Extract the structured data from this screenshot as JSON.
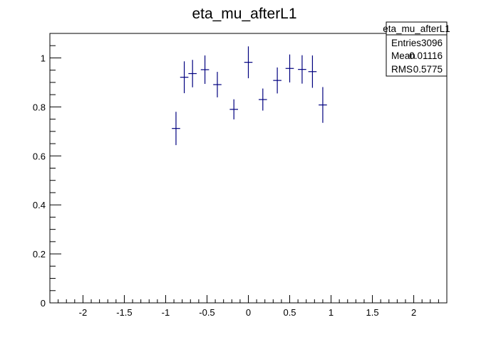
{
  "chart_data": {
    "type": "scatter",
    "title": "eta_mu_afterL1",
    "xlabel": "",
    "ylabel": "",
    "xlim": [
      -2.4,
      2.4
    ],
    "ylim": [
      0,
      1.1
    ],
    "grid": false,
    "x_ticks": [
      -2,
      -1.5,
      -1,
      -0.5,
      0,
      0.5,
      1,
      1.5,
      2
    ],
    "x_tick_labels": [
      "-2",
      "-1.5",
      "-1",
      "-0.5",
      "0",
      "0.5",
      "1",
      "1.5",
      "2"
    ],
    "y_ticks": [
      0,
      0.2,
      0.4,
      0.6,
      0.8,
      1
    ],
    "y_tick_labels": [
      "0",
      "0.2",
      "0.4",
      "0.6",
      "0.8",
      "1"
    ],
    "bin_half_width": 0.05,
    "points": [
      {
        "x": -0.875,
        "y": 0.712,
        "yerr": 0.068
      },
      {
        "x": -0.775,
        "y": 0.921,
        "yerr": 0.065
      },
      {
        "x": -0.675,
        "y": 0.936,
        "yerr": 0.056
      },
      {
        "x": -0.525,
        "y": 0.952,
        "yerr": 0.058
      },
      {
        "x": -0.375,
        "y": 0.891,
        "yerr": 0.052
      },
      {
        "x": -0.175,
        "y": 0.79,
        "yerr": 0.041
      },
      {
        "x": 0.0,
        "y": 0.982,
        "yerr": 0.065
      },
      {
        "x": 0.175,
        "y": 0.83,
        "yerr": 0.045
      },
      {
        "x": 0.35,
        "y": 0.908,
        "yerr": 0.053
      },
      {
        "x": 0.5,
        "y": 0.957,
        "yerr": 0.057
      },
      {
        "x": 0.65,
        "y": 0.953,
        "yerr": 0.058
      },
      {
        "x": 0.775,
        "y": 0.944,
        "yerr": 0.066
      },
      {
        "x": 0.9,
        "y": 0.808,
        "yerr": 0.073
      }
    ],
    "marker_color": "#00007f",
    "stats_box": {
      "title": "eta_mu_afterL1",
      "rows": [
        {
          "label": "Entries",
          "value": "3096"
        },
        {
          "label": "Mean",
          "value": "0.01116"
        },
        {
          "label": "RMS",
          "value": "0.5775"
        }
      ],
      "placement": "top-right"
    }
  }
}
